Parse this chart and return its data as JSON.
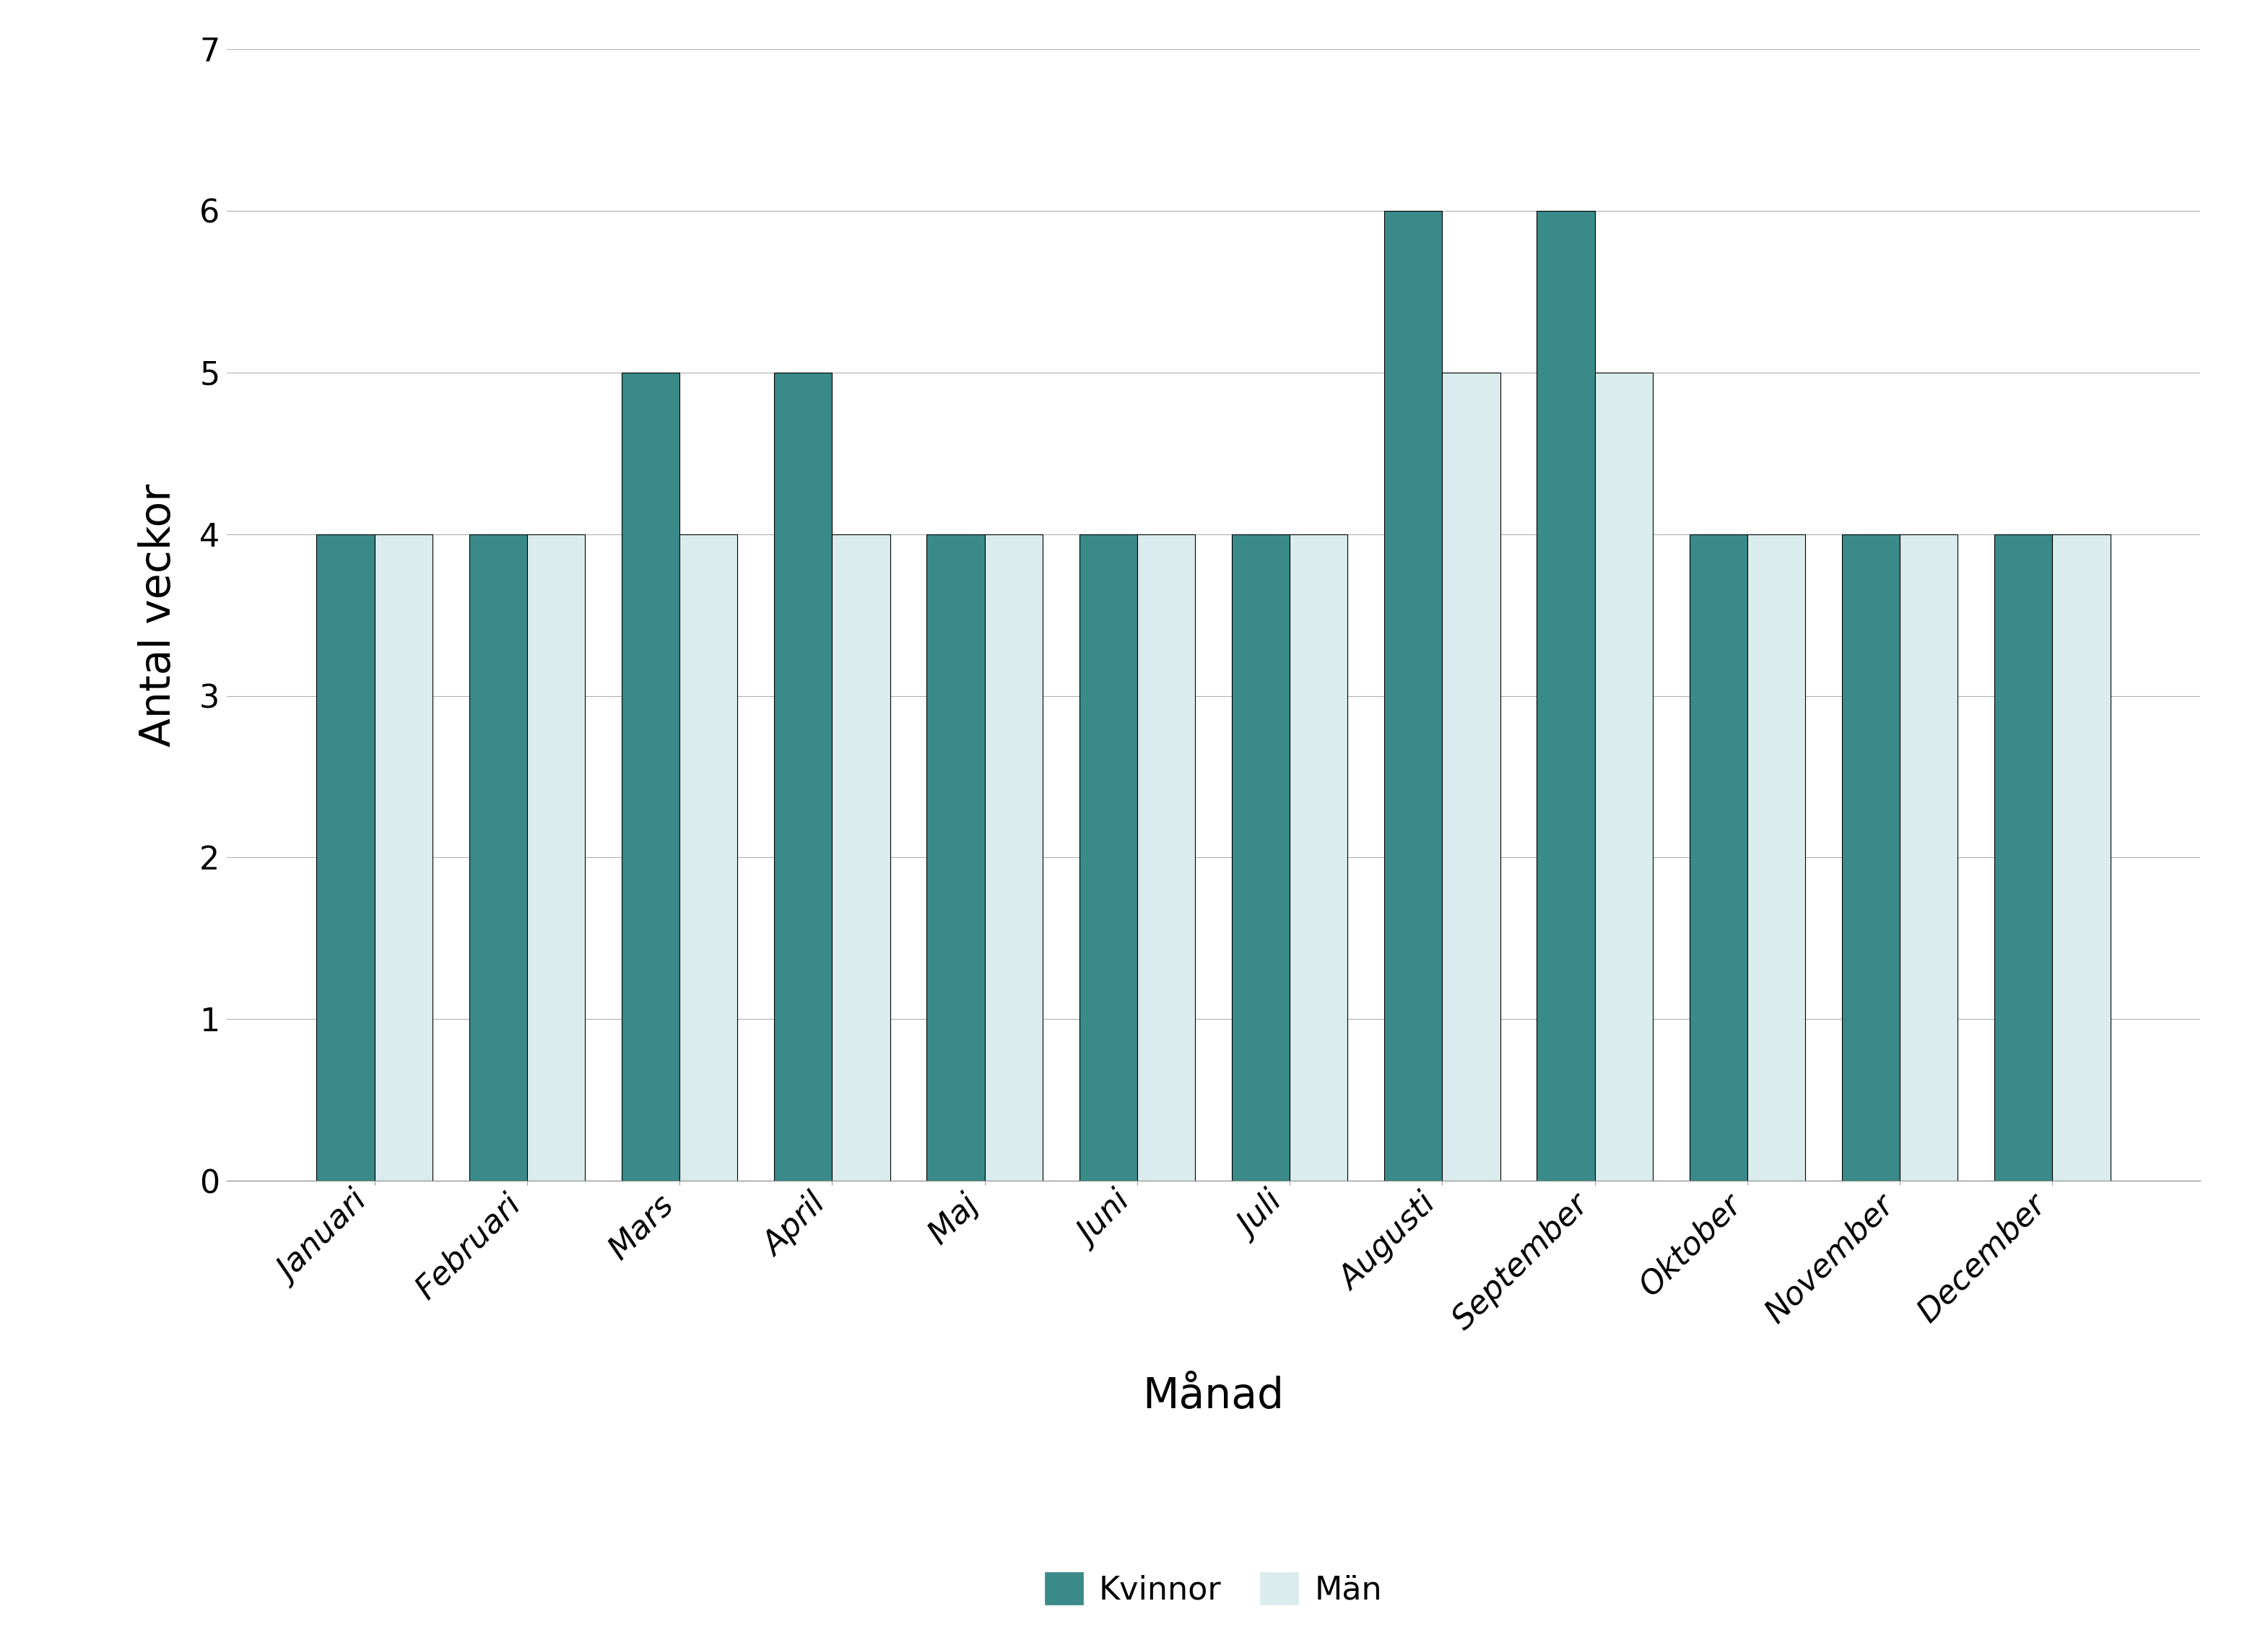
{
  "categories": [
    "Januari",
    "Februari",
    "Mars",
    "April",
    "Maj",
    "Juni",
    "Juli",
    "Augusti",
    "September",
    "Oktober",
    "November",
    "December"
  ],
  "kvinnor": [
    4,
    4,
    5,
    5,
    4,
    4,
    4,
    6,
    6,
    4,
    4,
    4
  ],
  "man": [
    4,
    4,
    4,
    4,
    4,
    4,
    4,
    5,
    5,
    4,
    4,
    4
  ],
  "color_kvinnor": "#3a8a8a",
  "color_man": "#daeced",
  "edge_color": "#000000",
  "xlabel": "Månad",
  "ylabel": "Antal veckor",
  "ylim": [
    0,
    7
  ],
  "yticks": [
    0,
    1,
    2,
    3,
    4,
    5,
    6,
    7
  ],
  "legend_labels": [
    "Kvinnor",
    "Män"
  ],
  "bar_width": 0.38,
  "background_color": "#ffffff",
  "grid_color": "#b0b0b0",
  "xlabel_fontsize": 42,
  "ylabel_fontsize": 42,
  "tick_fontsize": 32,
  "legend_fontsize": 32
}
